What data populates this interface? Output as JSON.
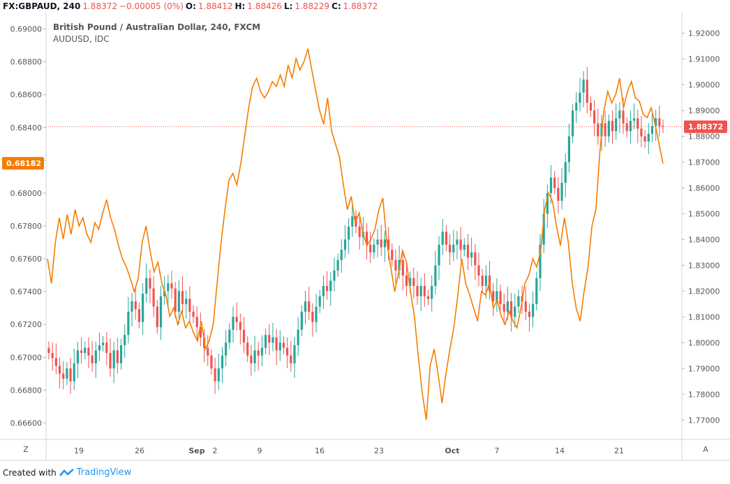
{
  "header": {
    "symbol": "FX:GBPAUD, 240",
    "price": "1.88372",
    "change": "−0.00005 (0%)",
    "o_label": "O:",
    "o_val": "1.88412",
    "h_label": "H:",
    "h_val": "1.88426",
    "l_label": "L:",
    "l_val": "1.88229",
    "c_label": "C:",
    "c_val": "1.88372"
  },
  "legend": {
    "main_series": "British Pound / Australian Dollar, 240, FXCM",
    "compare_series": "AUDUSD, IDC"
  },
  "scales": {
    "left_label": "Z",
    "right_label": "A"
  },
  "footer": {
    "created_with": "Created with",
    "brand": "TradingView"
  },
  "colors": {
    "up": "#26a69a",
    "down": "#ef5350",
    "compare_line": "#f57c00",
    "price_line": "#ef5350"
  },
  "chart_data": {
    "type": "candlestick",
    "x_tick_labels": [
      "19",
      "26",
      "Sep",
      "2",
      "9",
      "16",
      "23",
      "Oct",
      "7",
      "14",
      "21"
    ],
    "left_axis": {
      "series": "AUDUSD, IDC",
      "ylim": [
        0.665,
        0.691
      ],
      "ticks": [
        "0.69000",
        "0.68800",
        "0.68600",
        "0.68400",
        "0.68200",
        "0.68000",
        "0.67800",
        "0.67600",
        "0.67400",
        "0.67200",
        "0.67000",
        "0.66800",
        "0.66600"
      ],
      "last_value": "0.68182"
    },
    "right_axis": {
      "series": "British Pound / Australian Dollar, 240, FXCM",
      "ylim": [
        1.7625,
        1.928
      ],
      "ticks": [
        "1.92000",
        "1.91000",
        "1.90000",
        "1.89000",
        "1.88000",
        "1.87000",
        "1.86000",
        "1.85000",
        "1.84000",
        "1.83000",
        "1.82000",
        "1.81000",
        "1.80000",
        "1.79000",
        "1.78000",
        "1.77000"
      ],
      "last_value": "1.88372"
    },
    "gbpaud_close_path": [
      1.796,
      1.794,
      1.791,
      1.788,
      1.786,
      1.79,
      1.785,
      1.792,
      1.797,
      1.796,
      1.798,
      1.795,
      1.792,
      1.797,
      1.799,
      1.8,
      1.796,
      1.79,
      1.797,
      1.792,
      1.799,
      1.803,
      1.812,
      1.816,
      1.813,
      1.808,
      1.819,
      1.825,
      1.821,
      1.814,
      1.806,
      1.818,
      1.82,
      1.823,
      1.821,
      1.812,
      1.82,
      1.815,
      1.817,
      1.812,
      1.81,
      1.806,
      1.802,
      1.798,
      1.795,
      1.79,
      1.785,
      1.79,
      1.795,
      1.8,
      1.805,
      1.81,
      1.808,
      1.805,
      1.8,
      1.795,
      1.792,
      1.797,
      1.795,
      1.798,
      1.803,
      1.8,
      1.802,
      1.797,
      1.8,
      1.798,
      1.795,
      1.792,
      1.799,
      1.805,
      1.812,
      1.816,
      1.812,
      1.808,
      1.814,
      1.818,
      1.822,
      1.82,
      1.824,
      1.828,
      1.832,
      1.836,
      1.84,
      1.845,
      1.849,
      1.845,
      1.841,
      1.843,
      1.838,
      1.835,
      1.838,
      1.84,
      1.837,
      1.84,
      1.836,
      1.832,
      1.828,
      1.832,
      1.826,
      1.822,
      1.825,
      1.822,
      1.818,
      1.822,
      1.818,
      1.817,
      1.822,
      1.83,
      1.838,
      1.843,
      1.838,
      1.835,
      1.838,
      1.84,
      1.836,
      1.838,
      1.833,
      1.835,
      1.83,
      1.826,
      1.822,
      1.826,
      1.82,
      1.816,
      1.82,
      1.815,
      1.812,
      1.816,
      1.81,
      1.814,
      1.818,
      1.816,
      1.812,
      1.81,
      1.815,
      1.825,
      1.838,
      1.85,
      1.858,
      1.864,
      1.86,
      1.855,
      1.862,
      1.87,
      1.88,
      1.89,
      1.893,
      1.897,
      1.902,
      1.893,
      1.89,
      1.885,
      1.88,
      1.885,
      1.88,
      1.886,
      1.882,
      1.887,
      1.89,
      1.885,
      1.882,
      1.886,
      1.887,
      1.883,
      1.88,
      1.878,
      1.881,
      1.884,
      1.887,
      1.884,
      1.8837
    ],
    "audusd_path": [
      0.676,
      0.6745,
      0.677,
      0.6785,
      0.6772,
      0.6787,
      0.6775,
      0.679,
      0.678,
      0.6785,
      0.6775,
      0.677,
      0.6782,
      0.6778,
      0.6788,
      0.6796,
      0.6785,
      0.6778,
      0.6768,
      0.676,
      0.6755,
      0.6748,
      0.674,
      0.6748,
      0.677,
      0.678,
      0.6765,
      0.6752,
      0.6758,
      0.6745,
      0.6738,
      0.6725,
      0.673,
      0.672,
      0.6728,
      0.6718,
      0.6722,
      0.6715,
      0.671,
      0.6722,
      0.6705,
      0.671,
      0.672,
      0.6745,
      0.677,
      0.679,
      0.6808,
      0.6812,
      0.6805,
      0.6818,
      0.6835,
      0.6852,
      0.6865,
      0.687,
      0.6862,
      0.6858,
      0.6862,
      0.6868,
      0.6865,
      0.6872,
      0.6865,
      0.6878,
      0.687,
      0.6882,
      0.6875,
      0.688,
      0.6888,
      0.6875,
      0.6862,
      0.685,
      0.6842,
      0.6858,
      0.6838,
      0.683,
      0.6822,
      0.6805,
      0.679,
      0.6798,
      0.6782,
      0.6788,
      0.6775,
      0.6768,
      0.6772,
      0.6778,
      0.679,
      0.6797,
      0.677,
      0.6755,
      0.674,
      0.6752,
      0.6765,
      0.6758,
      0.674,
      0.6725,
      0.67,
      0.6678,
      0.6662,
      0.6695,
      0.6705,
      0.669,
      0.6672,
      0.669,
      0.6705,
      0.6718,
      0.6738,
      0.676,
      0.6745,
      0.6738,
      0.673,
      0.6722,
      0.674,
      0.6738,
      0.6745,
      0.673,
      0.6735,
      0.6725,
      0.672,
      0.6728,
      0.6722,
      0.6718,
      0.673,
      0.6745,
      0.675,
      0.676,
      0.6755,
      0.6765,
      0.679,
      0.68,
      0.6795,
      0.678,
      0.6768,
      0.6785,
      0.677,
      0.6745,
      0.673,
      0.6722,
      0.674,
      0.6755,
      0.678,
      0.679,
      0.6825,
      0.685,
      0.6862,
      0.6855,
      0.686,
      0.687,
      0.6852,
      0.6862,
      0.6868,
      0.6858,
      0.6856,
      0.6848,
      0.6846,
      0.6852,
      0.6842,
      0.683,
      0.6818
    ]
  }
}
